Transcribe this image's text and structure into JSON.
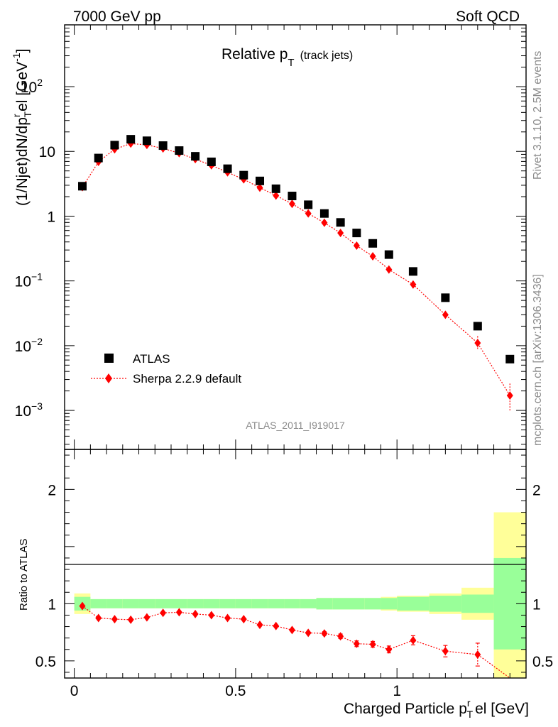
{
  "header": {
    "left": "7000 GeV pp",
    "right": "Soft QCD"
  },
  "side_labels": {
    "rivet": "Rivet 3.1.10,  2.5M events",
    "mcplots": "mcplots.cern.ch [arXiv:1306.3436]"
  },
  "colors": {
    "atlas": "#000000",
    "sherpa": "#ff0000",
    "band_inner": "#99ff99",
    "band_outer": "#ffff99",
    "watermark": "#8c8c8c"
  },
  "chart_data": [
    {
      "type": "scatter",
      "title": "Relative p",
      "title_sub": "T",
      "title_suffix": "(track jets)",
      "ylabel": "(1/Njet)dN/dp",
      "ylabel_sup": "r",
      "ylabel_sub": "T",
      "ylabel_tail": "el [GeV",
      "ylabel_tail_sup": "-1",
      "ylabel_end": "]",
      "yscale": "log",
      "ylim": [
        0.00025,
        900
      ],
      "xlim": [
        -0.03,
        1.4
      ],
      "analysis_id": "ATLAS_2011_I919017",
      "legend": {
        "position": "bottom-left",
        "atlas_label": "ATLAS",
        "sherpa_label": "Sherpa 2.2.9 default"
      },
      "yticks": [
        {
          "v": 0.001,
          "base": "10",
          "exp": "−3"
        },
        {
          "v": 0.01,
          "base": "10",
          "exp": "−2"
        },
        {
          "v": 0.1,
          "base": "10",
          "exp": "−1"
        },
        {
          "v": 1,
          "base": "1",
          "exp": ""
        },
        {
          "v": 10,
          "base": "10",
          "exp": ""
        },
        {
          "v": 100,
          "base": "10",
          "exp": "2"
        }
      ],
      "series": [
        {
          "name": "ATLAS",
          "x": [
            0.025,
            0.075,
            0.125,
            0.175,
            0.225,
            0.275,
            0.325,
            0.375,
            0.425,
            0.475,
            0.525,
            0.575,
            0.625,
            0.675,
            0.725,
            0.775,
            0.825,
            0.875,
            0.925,
            0.975,
            1.05,
            1.15,
            1.25,
            1.35
          ],
          "y": [
            2.9,
            7.9,
            12.5,
            15.4,
            14.6,
            12.3,
            10.3,
            8.4,
            6.9,
            5.4,
            4.3,
            3.5,
            2.65,
            2.05,
            1.5,
            1.1,
            0.8,
            0.55,
            0.38,
            0.255,
            0.14,
            0.055,
            0.02,
            0.0062
          ]
        },
        {
          "name": "Sherpa 2.2.9 default",
          "x": [
            0.025,
            0.075,
            0.125,
            0.175,
            0.225,
            0.275,
            0.325,
            0.375,
            0.425,
            0.475,
            0.525,
            0.575,
            0.625,
            0.675,
            0.725,
            0.775,
            0.825,
            0.875,
            0.925,
            0.975,
            1.05,
            1.15,
            1.25,
            1.35
          ],
          "y": [
            2.8,
            6.9,
            10.8,
            13.2,
            12.6,
            11.1,
            9.4,
            7.6,
            6.1,
            4.75,
            3.7,
            2.75,
            2.08,
            1.55,
            1.1,
            0.79,
            0.55,
            0.35,
            0.24,
            0.15,
            0.088,
            0.03,
            0.011,
            0.0017
          ],
          "yerr_low": [
            0,
            0,
            0,
            0,
            0,
            0,
            0,
            0,
            0,
            0,
            0,
            0,
            0,
            0,
            0,
            0,
            0,
            0,
            0,
            0,
            0,
            0,
            0.0025,
            0.0007
          ],
          "yerr_high": [
            0,
            0,
            0,
            0,
            0,
            0,
            0,
            0,
            0,
            0,
            0,
            0,
            0,
            0,
            0,
            0,
            0,
            0,
            0,
            0,
            0,
            0,
            0.003,
            0.0009
          ]
        }
      ]
    },
    {
      "type": "scatter",
      "ylabel": "Ratio to ATLAS",
      "xlabel": "Charged Particle p",
      "xlabel_sub": "T",
      "xlabel_sup": "r",
      "xlabel_tail": "el [GeV]",
      "ylim": [
        0.35,
        2.35
      ],
      "xlim": [
        -0.03,
        1.4
      ],
      "xticks": [
        {
          "v": 0,
          "label": "0"
        },
        {
          "v": 0.5,
          "label": "0.5"
        },
        {
          "v": 1,
          "label": "1"
        }
      ],
      "yticks": [
        {
          "v": 0.5,
          "label": "0.5"
        },
        {
          "v": 1,
          "label": "1"
        },
        {
          "v": 2,
          "label": "2"
        }
      ],
      "bins": [
        0,
        0.05,
        0.1,
        0.15,
        0.2,
        0.25,
        0.3,
        0.35,
        0.4,
        0.45,
        0.5,
        0.55,
        0.6,
        0.65,
        0.7,
        0.75,
        0.8,
        0.85,
        0.9,
        0.95,
        1.0,
        1.1,
        1.2,
        1.3,
        1.4
      ],
      "band_inner": [
        0.06,
        0.04,
        0.04,
        0.04,
        0.04,
        0.04,
        0.04,
        0.04,
        0.04,
        0.04,
        0.04,
        0.04,
        0.04,
        0.04,
        0.04,
        0.05,
        0.05,
        0.05,
        0.05,
        0.05,
        0.06,
        0.07,
        0.08,
        0.4
      ],
      "band_outer": [
        0.09,
        0.04,
        0.04,
        0.04,
        0.04,
        0.04,
        0.04,
        0.04,
        0.04,
        0.04,
        0.04,
        0.04,
        0.04,
        0.04,
        0.04,
        0.05,
        0.05,
        0.05,
        0.05,
        0.06,
        0.07,
        0.09,
        0.14,
        0.8
      ],
      "series": [
        {
          "name": "Sherpa 2.2.9 default",
          "x": [
            0.025,
            0.075,
            0.125,
            0.175,
            0.225,
            0.275,
            0.325,
            0.375,
            0.425,
            0.475,
            0.525,
            0.575,
            0.625,
            0.675,
            0.725,
            0.775,
            0.825,
            0.875,
            0.925,
            0.975,
            1.05,
            1.15,
            1.25,
            1.35
          ],
          "y": [
            0.98,
            0.875,
            0.865,
            0.86,
            0.88,
            0.92,
            0.925,
            0.91,
            0.9,
            0.875,
            0.865,
            0.815,
            0.805,
            0.77,
            0.745,
            0.74,
            0.715,
            0.65,
            0.645,
            0.6,
            0.68,
            0.585,
            0.555,
            0.28
          ],
          "yerr": [
            0.01,
            0.01,
            0.01,
            0.01,
            0.01,
            0.01,
            0.01,
            0.01,
            0.01,
            0.01,
            0.01,
            0.01,
            0.01,
            0.01,
            0.01,
            0.015,
            0.02,
            0.025,
            0.025,
            0.03,
            0.04,
            0.05,
            0.1,
            0.1
          ]
        }
      ]
    }
  ]
}
